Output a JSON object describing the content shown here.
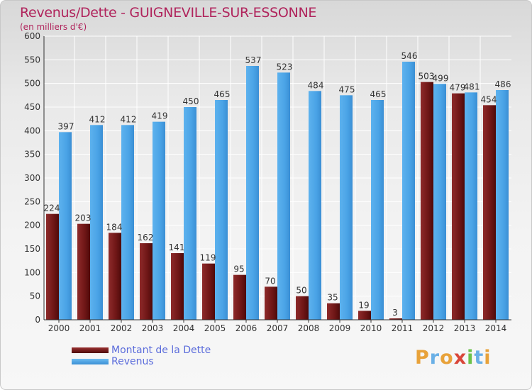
{
  "header": {
    "title": "Revenus/Dette - GUIGNEVILLE-SUR-ESSONNE",
    "subtitle": "(en milliers d'€)"
  },
  "colors": {
    "title": "#b0245c",
    "legend_text": "#5b6cdb",
    "dette": "#7a1a1a",
    "revenus": "#4aa3e6"
  },
  "chart_data": {
    "type": "bar",
    "categories": [
      "2000",
      "2001",
      "2002",
      "2003",
      "2004",
      "2005",
      "2006",
      "2007",
      "2008",
      "2009",
      "2010",
      "2011",
      "2012",
      "2013",
      "2014"
    ],
    "series": [
      {
        "name": "Montant de la Dette",
        "values": [
          224,
          203,
          184,
          162,
          141,
          119,
          95,
          70,
          50,
          35,
          19,
          3,
          503,
          479,
          454
        ]
      },
      {
        "name": "Revenus",
        "values": [
          397,
          412,
          412,
          419,
          450,
          465,
          537,
          523,
          484,
          475,
          465,
          546,
          499,
          481,
          486
        ]
      }
    ],
    "title": "Revenus/Dette - GUIGNEVILLE-SUR-ESSONNE",
    "ylim": [
      0,
      600
    ],
    "yticks": [
      0,
      50,
      100,
      150,
      200,
      250,
      300,
      350,
      400,
      450,
      500,
      550,
      600
    ],
    "grid": true,
    "legend": "bottom-left"
  },
  "legend": [
    {
      "label": "Montant de la Dette"
    },
    {
      "label": "Revenus"
    }
  ],
  "logo": {
    "letters": [
      "P",
      "r",
      "o",
      "x",
      "i",
      "t",
      "i"
    ]
  }
}
